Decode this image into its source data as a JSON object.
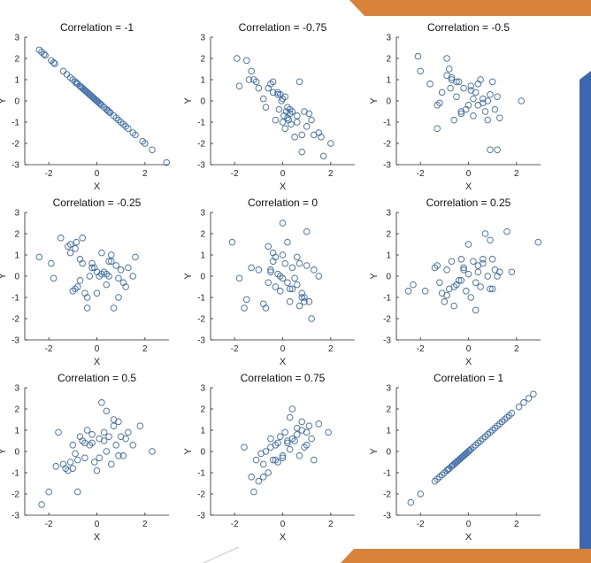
{
  "colors": {
    "marker": "#3a6aa8",
    "axis": "#262626",
    "decor_orange": "#d9823b",
    "decor_blue": "#3d68b0"
  },
  "chart_data": [
    {
      "type": "scatter",
      "title": "Correlation = -1",
      "xlabel": "X",
      "ylabel": "Y",
      "xlim": [
        -3,
        3
      ],
      "ylim": [
        -3,
        3
      ],
      "xticks": [
        -2,
        0,
        2
      ],
      "yticks": [
        -3,
        -2,
        -1,
        0,
        1,
        2,
        3
      ],
      "x": [
        -2.4,
        -2.3,
        -2.2,
        -2.15,
        -1.9,
        -1.8,
        -1.75,
        -1.4,
        -1.25,
        -1.1,
        -1.0,
        -0.9,
        -0.85,
        -0.8,
        -0.7,
        -0.65,
        -0.6,
        -0.55,
        -0.5,
        -0.45,
        -0.4,
        -0.35,
        -0.3,
        -0.25,
        -0.2,
        -0.15,
        -0.1,
        -0.05,
        0.0,
        0.05,
        0.1,
        0.15,
        0.2,
        0.3,
        0.4,
        0.45,
        0.5,
        0.55,
        0.7,
        0.8,
        0.9,
        1.0,
        1.1,
        1.2,
        1.3,
        1.5,
        1.6,
        1.9,
        2.0,
        2.3,
        2.9
      ],
      "y": [
        2.4,
        2.3,
        2.2,
        2.15,
        1.9,
        1.8,
        1.75,
        1.4,
        1.25,
        1.1,
        1.0,
        0.9,
        0.85,
        0.8,
        0.7,
        0.65,
        0.6,
        0.55,
        0.5,
        0.45,
        0.4,
        0.35,
        0.3,
        0.25,
        0.2,
        0.15,
        0.1,
        0.05,
        0.0,
        -0.05,
        -0.1,
        -0.15,
        -0.2,
        -0.3,
        -0.4,
        -0.45,
        -0.5,
        -0.55,
        -0.7,
        -0.8,
        -0.9,
        -1.0,
        -1.1,
        -1.2,
        -1.3,
        -1.5,
        -1.6,
        -1.9,
        -2.0,
        -2.3,
        -2.9
      ]
    },
    {
      "type": "scatter",
      "title": "Correlation = -0.75",
      "xlabel": "X",
      "ylabel": "Y",
      "xlim": [
        -3,
        3
      ],
      "ylim": [
        -3,
        3
      ],
      "xticks": [
        -2,
        0,
        2
      ],
      "yticks": [
        -3,
        -2,
        -1,
        0,
        1,
        2,
        3
      ],
      "x": [
        -1.9,
        -1.8,
        -1.5,
        -1.4,
        -1.3,
        -1.2,
        -1.1,
        -0.8,
        -0.7,
        -0.5,
        -0.4,
        -0.3,
        -0.2,
        -0.15,
        -0.1,
        -0.05,
        0.0,
        0.05,
        0.1,
        0.1,
        0.15,
        0.2,
        0.25,
        0.3,
        0.35,
        0.4,
        0.5,
        0.6,
        0.7,
        0.8,
        0.9,
        1.0,
        1.1,
        1.2,
        1.3,
        1.5,
        1.6,
        1.7,
        2.0,
        -0.4,
        0.0,
        0.2,
        -0.6,
        0.6,
        -0.2,
        0.3,
        0.8,
        -1.0
      ],
      "y": [
        2.0,
        0.7,
        1.9,
        1.0,
        1.4,
        1.0,
        0.9,
        0.1,
        -0.3,
        0.8,
        0.9,
        -0.9,
        0.4,
        -0.4,
        0.3,
        0.0,
        0.1,
        -0.7,
        0.2,
        -1.3,
        -0.5,
        -0.3,
        -0.9,
        -0.6,
        -1.1,
        -0.5,
        -1.7,
        -1.0,
        0.9,
        -1.6,
        -0.5,
        -1.2,
        -0.6,
        -0.9,
        -1.6,
        -1.5,
        -1.7,
        -2.6,
        -2.0,
        0.4,
        -1.0,
        -0.8,
        0.6,
        -0.7,
        0.3,
        -0.4,
        -2.4,
        0.6
      ]
    },
    {
      "type": "scatter",
      "title": "Correlation = -0.5",
      "xlabel": "X",
      "ylabel": "Y",
      "xlim": [
        -3,
        3
      ],
      "ylim": [
        -3,
        3
      ],
      "xticks": [
        -2,
        0,
        2
      ],
      "yticks": [
        -3,
        -2,
        -1,
        0,
        1,
        2,
        3
      ],
      "x": [
        -2.1,
        -2.0,
        -1.6,
        -1.3,
        -1.2,
        -1.1,
        -0.9,
        -0.8,
        -0.75,
        -0.7,
        -0.6,
        -0.5,
        -0.4,
        -0.3,
        -0.2,
        -0.1,
        0.0,
        0.1,
        0.2,
        0.3,
        0.4,
        0.5,
        0.6,
        0.7,
        0.8,
        0.9,
        1.0,
        1.1,
        1.2,
        1.3,
        2.2,
        -0.9,
        -0.3,
        0.4,
        0.8,
        1.2,
        -1.3,
        -0.5,
        0.2,
        0.9,
        -0.7,
        0.1,
        0.6
      ],
      "y": [
        2.1,
        1.4,
        0.8,
        -1.3,
        -0.1,
        0.4,
        2.0,
        1.5,
        0.6,
        1.1,
        -0.9,
        0.2,
        0.9,
        -0.6,
        0.6,
        -0.4,
        -0.2,
        0.7,
        0.1,
        0.4,
        -0.2,
        1.0,
        0.1,
        -0.5,
        0.0,
        -2.3,
        0.9,
        -0.4,
        0.2,
        -0.8,
        0.0,
        1.2,
        -0.5,
        0.8,
        -0.9,
        -2.3,
        -0.2,
        0.9,
        -0.7,
        0.3,
        1.0,
        0.5,
        -0.1
      ]
    },
    {
      "type": "scatter",
      "title": "Correlation = -0.25",
      "xlabel": "X",
      "ylabel": "Y",
      "xlim": [
        -3,
        3
      ],
      "ylim": [
        -3,
        3
      ],
      "xticks": [
        -2,
        0,
        2
      ],
      "yticks": [
        -3,
        -2,
        -1,
        0,
        1,
        2,
        3
      ],
      "x": [
        -2.4,
        -1.9,
        -1.8,
        -1.5,
        -1.2,
        -1.1,
        -1.0,
        -0.9,
        -0.85,
        -0.8,
        -0.7,
        -0.6,
        -0.5,
        -0.4,
        -0.3,
        -0.2,
        -0.1,
        0.0,
        0.1,
        0.2,
        0.3,
        0.4,
        0.5,
        0.6,
        0.7,
        0.8,
        0.9,
        1.0,
        1.1,
        1.3,
        1.5,
        1.6,
        -0.9,
        -0.4,
        0.2,
        0.6,
        1.2,
        -1.1,
        -0.6,
        -0.2,
        0.4,
        0.9,
        -0.7,
        0.0,
        0.5
      ],
      "y": [
        0.9,
        0.6,
        -0.1,
        1.8,
        1.4,
        1.5,
        -0.7,
        1.3,
        1.6,
        -0.5,
        0.8,
        1.8,
        -0.8,
        -1.0,
        0.0,
        0.6,
        0.4,
        -0.8,
        0.0,
        1.1,
        0.2,
        -0.4,
        0.0,
        1.0,
        -1.5,
        0.5,
        -1.0,
        0.3,
        -0.3,
        0.4,
        0.0,
        0.9,
        -0.6,
        -1.5,
        0.1,
        0.7,
        -0.5,
        1.1,
        0.6,
        0.4,
        0.1,
        -0.1,
        -0.2,
        0.2,
        0.7
      ]
    },
    {
      "type": "scatter",
      "title": "Correlation = 0",
      "xlabel": "X",
      "ylabel": "Y",
      "xlim": [
        -3,
        3
      ],
      "ylim": [
        -3,
        3
      ],
      "xticks": [
        -2,
        0,
        2
      ],
      "yticks": [
        -3,
        -2,
        -1,
        0,
        1,
        2,
        3
      ],
      "x": [
        -2.1,
        -1.8,
        -1.6,
        -1.5,
        -1.3,
        -1.0,
        -0.8,
        -0.7,
        -0.6,
        -0.5,
        -0.4,
        -0.3,
        -0.2,
        -0.1,
        0.0,
        0.1,
        0.2,
        0.3,
        0.4,
        0.5,
        0.6,
        0.7,
        0.8,
        0.9,
        1.0,
        1.1,
        1.3,
        1.5,
        -0.6,
        -0.3,
        0.0,
        0.3,
        0.6,
        0.9,
        -0.5,
        -0.1,
        0.2,
        0.7,
        1.0,
        -0.4,
        0.0,
        0.4,
        0.8,
        1.2
      ],
      "y": [
        1.6,
        -0.1,
        -1.5,
        -1.1,
        0.4,
        0.3,
        -1.3,
        -1.5,
        1.4,
        0.3,
        1.1,
        0.9,
        0.1,
        -0.7,
        2.5,
        0.6,
        1.6,
        -0.6,
        0.4,
        -0.1,
        -0.4,
        0.6,
        -1.0,
        -1.2,
        2.1,
        -1.2,
        0.3,
        0.0,
        -0.3,
        -0.5,
        1.0,
        -1.2,
        0.9,
        -1.0,
        0.2,
        0.0,
        -0.3,
        -1.4,
        0.5,
        0.7,
        -0.1,
        -0.6,
        -0.8,
        -2.0
      ]
    },
    {
      "type": "scatter",
      "title": "Correlation = 0.25",
      "xlabel": "X",
      "ylabel": "Y",
      "xlim": [
        -3,
        3
      ],
      "ylim": [
        -3,
        3
      ],
      "xticks": [
        -2,
        0,
        2
      ],
      "yticks": [
        -3,
        -2,
        -1,
        0,
        1,
        2,
        3
      ],
      "x": [
        -2.5,
        -2.3,
        -1.8,
        -1.4,
        -1.3,
        -1.2,
        -1.1,
        -1.0,
        -0.9,
        -0.8,
        -0.7,
        -0.6,
        -0.5,
        -0.4,
        -0.3,
        -0.2,
        -0.1,
        0.0,
        0.1,
        0.2,
        0.3,
        0.4,
        0.5,
        0.6,
        0.7,
        0.8,
        0.9,
        1.0,
        1.1,
        1.2,
        1.3,
        1.6,
        1.8,
        2.9,
        -0.9,
        -0.3,
        0.3,
        0.6,
        1.0,
        -0.6,
        0.0,
        0.4,
        0.9,
        -0.2
      ],
      "y": [
        -0.7,
        -0.4,
        -0.7,
        0.4,
        0.5,
        -0.3,
        -0.8,
        -1.2,
        0.3,
        -0.6,
        0.7,
        -1.4,
        -0.4,
        -0.2,
        0.8,
        0.4,
        -0.7,
        1.5,
        -1.0,
        0.7,
        -1.6,
        0.2,
        -0.5,
        0.8,
        2.0,
        0.0,
        1.7,
        -0.6,
        0.3,
        0.0,
        0.2,
        2.1,
        0.2,
        1.6,
        -0.9,
        -0.2,
        -0.3,
        0.6,
        0.8,
        -0.5,
        0.1,
        0.5,
        -0.6,
        0.3
      ]
    },
    {
      "type": "scatter",
      "title": "Correlation = 0.5",
      "xlabel": "X",
      "ylabel": "Y",
      "xlim": [
        -3,
        3
      ],
      "ylim": [
        -3,
        3
      ],
      "xticks": [
        -2,
        0,
        2
      ],
      "yticks": [
        -3,
        -2,
        -1,
        0,
        1,
        2,
        3
      ],
      "x": [
        -2.3,
        -2.0,
        -1.7,
        -1.6,
        -1.4,
        -1.3,
        -1.2,
        -1.1,
        -1.0,
        -0.9,
        -0.8,
        -0.7,
        -0.6,
        -0.5,
        -0.4,
        -0.3,
        -0.2,
        -0.1,
        0.0,
        0.1,
        0.2,
        0.3,
        0.4,
        0.5,
        0.6,
        0.7,
        0.8,
        0.9,
        1.0,
        1.1,
        1.2,
        1.3,
        1.5,
        1.8,
        2.3,
        -0.8,
        -0.2,
        0.4,
        0.9,
        -0.5,
        0.1,
        0.7,
        -1.0,
        0.3
      ],
      "y": [
        -2.5,
        -1.9,
        -0.7,
        0.9,
        -0.6,
        -0.8,
        -0.9,
        -0.5,
        0.3,
        -0.1,
        -1.9,
        0.7,
        0.5,
        -0.3,
        1.0,
        0.3,
        0.4,
        -0.5,
        -0.9,
        0.6,
        2.3,
        0.9,
        1.9,
        0.7,
        -0.6,
        1.2,
        0.3,
        1.4,
        0.7,
        -0.2,
        0.6,
        0.9,
        0.3,
        1.2,
        0.0,
        -0.4,
        0.8,
        0.0,
        -0.2,
        0.4,
        -0.3,
        1.5,
        -0.8,
        0.5
      ]
    },
    {
      "type": "scatter",
      "title": "Correlation = 0.75",
      "xlabel": "X",
      "ylabel": "Y",
      "xlim": [
        -3,
        3
      ],
      "ylim": [
        -3,
        3
      ],
      "xticks": [
        -2,
        0,
        2
      ],
      "yticks": [
        -3,
        -2,
        -1,
        0,
        1,
        2,
        3
      ],
      "x": [
        -1.6,
        -1.3,
        -1.2,
        -1.1,
        -1.0,
        -0.9,
        -0.8,
        -0.7,
        -0.6,
        -0.5,
        -0.4,
        -0.3,
        -0.2,
        -0.1,
        0.0,
        0.1,
        0.2,
        0.3,
        0.4,
        0.5,
        0.6,
        0.7,
        0.8,
        0.9,
        1.0,
        1.1,
        1.2,
        1.3,
        1.5,
        1.9,
        -0.8,
        -0.3,
        0.2,
        0.6,
        1.0,
        -0.5,
        0.0,
        0.4,
        0.8,
        -0.2,
        0.3
      ],
      "y": [
        0.2,
        -1.2,
        -1.9,
        -0.4,
        -1.4,
        -0.1,
        -1.2,
        0.0,
        -1.0,
        0.6,
        -0.4,
        0.3,
        -0.5,
        0.7,
        -0.3,
        0.9,
        0.4,
        1.6,
        2.0,
        0.5,
        1.1,
        -0.2,
        1.4,
        0.2,
        0.9,
        1.2,
        0.6,
        -0.4,
        1.3,
        0.9,
        -0.6,
        -0.4,
        0.5,
        0.8,
        0.3,
        0.2,
        -0.2,
        0.6,
        1.0,
        0.4,
        0.1
      ]
    },
    {
      "type": "scatter",
      "title": "Correlation = 1",
      "xlabel": "X",
      "ylabel": "Y",
      "xlim": [
        -3,
        3
      ],
      "ylim": [
        -3,
        3
      ],
      "xticks": [
        -2,
        0,
        2
      ],
      "yticks": [
        -3,
        -2,
        -1,
        0,
        1,
        2,
        3
      ],
      "x": [
        -2.4,
        -2.0,
        -1.4,
        -1.3,
        -1.2,
        -1.1,
        -1.0,
        -0.9,
        -0.85,
        -0.8,
        -0.7,
        -0.65,
        -0.6,
        -0.55,
        -0.5,
        -0.45,
        -0.4,
        -0.35,
        -0.3,
        -0.25,
        -0.2,
        -0.15,
        -0.1,
        -0.05,
        0.0,
        0.05,
        0.1,
        0.2,
        0.3,
        0.4,
        0.5,
        0.6,
        0.7,
        0.8,
        0.9,
        1.0,
        1.1,
        1.2,
        1.3,
        1.4,
        1.5,
        1.6,
        1.7,
        1.8,
        2.1,
        2.3,
        2.5,
        2.7
      ],
      "y": [
        -2.4,
        -2.0,
        -1.4,
        -1.3,
        -1.2,
        -1.1,
        -1.0,
        -0.9,
        -0.85,
        -0.8,
        -0.7,
        -0.65,
        -0.6,
        -0.55,
        -0.5,
        -0.45,
        -0.4,
        -0.35,
        -0.3,
        -0.25,
        -0.2,
        -0.15,
        -0.1,
        -0.05,
        0.0,
        0.05,
        0.1,
        0.2,
        0.3,
        0.4,
        0.5,
        0.6,
        0.7,
        0.8,
        0.9,
        1.0,
        1.1,
        1.2,
        1.3,
        1.4,
        1.5,
        1.6,
        1.7,
        1.8,
        2.1,
        2.3,
        2.5,
        2.7
      ]
    }
  ]
}
